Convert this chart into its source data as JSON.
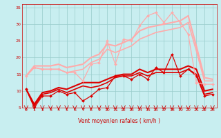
{
  "xlabel": "Vent moyen/en rafales ( km/h )",
  "xlim": [
    -0.5,
    23.5
  ],
  "ylim": [
    5,
    36
  ],
  "yticks": [
    5,
    10,
    15,
    20,
    25,
    30,
    35
  ],
  "xticks": [
    0,
    1,
    2,
    3,
    4,
    5,
    6,
    7,
    8,
    9,
    10,
    11,
    12,
    13,
    14,
    15,
    16,
    17,
    18,
    19,
    20,
    21,
    22,
    23
  ],
  "bg_color": "#c8eef0",
  "grid_color": "#99cccc",
  "series": [
    {
      "x": [
        0,
        1,
        2,
        3,
        4,
        5,
        6,
        7,
        8,
        9,
        10,
        11,
        12,
        13,
        14,
        15,
        16,
        17,
        18,
        19,
        20,
        21,
        22,
        23
      ],
      "y": [
        10.5,
        5.0,
        8.5,
        8.5,
        10.0,
        9.0,
        9.5,
        7.0,
        8.5,
        10.5,
        11.0,
        14.5,
        14.5,
        13.5,
        15.0,
        13.5,
        17.0,
        15.5,
        21.0,
        14.5,
        16.5,
        14.5,
        8.5,
        9.0
      ],
      "color": "#dd0000",
      "lw": 0.9,
      "marker": "D",
      "ms": 2.0
    },
    {
      "x": [
        0,
        1,
        2,
        3,
        4,
        5,
        6,
        7,
        8,
        9,
        10,
        11,
        12,
        13,
        14,
        15,
        16,
        17,
        18,
        19,
        20,
        21,
        22,
        23
      ],
      "y": [
        10.5,
        5.5,
        9.0,
        9.5,
        10.5,
        9.5,
        10.5,
        11.5,
        11.0,
        11.5,
        12.5,
        14.0,
        14.5,
        14.5,
        15.5,
        14.5,
        15.5,
        15.5,
        15.5,
        15.5,
        16.5,
        15.0,
        9.0,
        9.5
      ],
      "color": "#dd0000",
      "lw": 1.2,
      "marker": null,
      "ms": 0
    },
    {
      "x": [
        0,
        1,
        2,
        3,
        4,
        5,
        6,
        7,
        8,
        9,
        10,
        11,
        12,
        13,
        14,
        15,
        16,
        17,
        18,
        19,
        20,
        21,
        22,
        23
      ],
      "y": [
        10.5,
        6.0,
        9.5,
        10.0,
        11.0,
        10.5,
        11.5,
        12.5,
        12.5,
        12.5,
        13.5,
        14.5,
        15.0,
        15.0,
        16.5,
        15.5,
        16.5,
        16.5,
        16.5,
        16.5,
        17.5,
        16.5,
        10.0,
        10.5
      ],
      "color": "#dd0000",
      "lw": 1.5,
      "marker": null,
      "ms": 0
    },
    {
      "x": [
        0,
        1,
        2,
        3,
        4,
        5,
        6,
        7,
        8,
        9,
        10,
        11,
        12,
        13,
        14,
        15,
        16,
        17,
        18,
        19,
        20,
        21,
        22,
        23
      ],
      "y": [
        14.5,
        17.0,
        16.5,
        16.5,
        16.5,
        15.5,
        15.5,
        13.0,
        18.0,
        18.5,
        25.0,
        18.0,
        25.5,
        25.0,
        29.5,
        32.5,
        33.5,
        30.5,
        33.5,
        30.5,
        27.0,
        12.5,
        12.0,
        12.0
      ],
      "color": "#ffaaaa",
      "lw": 0.9,
      "marker": "D",
      "ms": 2.0
    },
    {
      "x": [
        0,
        1,
        2,
        3,
        4,
        5,
        6,
        7,
        8,
        9,
        10,
        11,
        12,
        13,
        14,
        15,
        16,
        17,
        18,
        19,
        20,
        21,
        22,
        23
      ],
      "y": [
        14.5,
        17.0,
        16.5,
        16.5,
        16.5,
        15.5,
        16.0,
        16.5,
        18.5,
        19.5,
        22.5,
        21.5,
        22.5,
        23.5,
        25.5,
        26.5,
        27.5,
        28.0,
        28.5,
        29.0,
        30.5,
        22.0,
        13.0,
        13.0
      ],
      "color": "#ffaaaa",
      "lw": 1.2,
      "marker": null,
      "ms": 0
    },
    {
      "x": [
        0,
        1,
        2,
        3,
        4,
        5,
        6,
        7,
        8,
        9,
        10,
        11,
        12,
        13,
        14,
        15,
        16,
        17,
        18,
        19,
        20,
        21,
        22,
        23
      ],
      "y": [
        14.5,
        17.5,
        17.5,
        17.5,
        18.0,
        17.0,
        17.5,
        18.0,
        20.0,
        21.0,
        24.0,
        23.5,
        24.5,
        25.5,
        28.0,
        29.0,
        29.5,
        30.0,
        30.5,
        31.0,
        32.5,
        23.5,
        14.0,
        13.5
      ],
      "color": "#ffaaaa",
      "lw": 1.5,
      "marker": null,
      "ms": 0
    }
  ],
  "wind_arrows_x": [
    0,
    1,
    2,
    3,
    4,
    5,
    6,
    7,
    8,
    9,
    10,
    11,
    12,
    13,
    14,
    15,
    16,
    17,
    18,
    19,
    20,
    21,
    22,
    23
  ]
}
